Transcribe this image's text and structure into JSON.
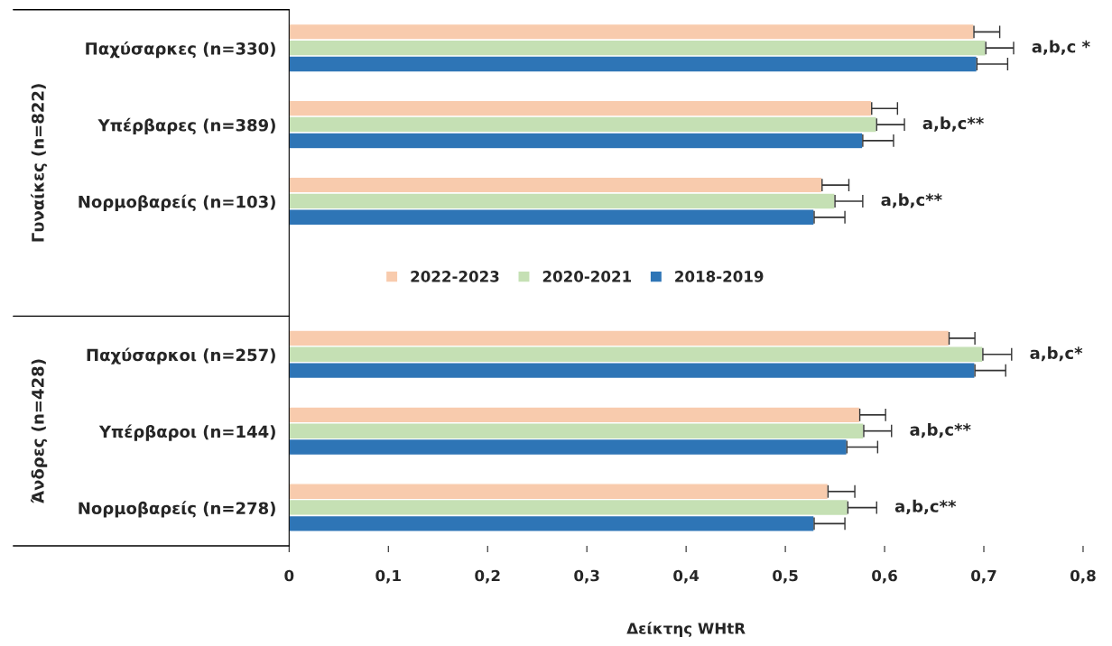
{
  "chart_data": {
    "type": "bar",
    "orientation": "horizontal",
    "xlabel": "Δείκτης WHtR",
    "categories": [
      "Παχύσαρκες (n=330)",
      "Υπέρβαρες (n=389)",
      "Νορμοβαρείς (n=103)",
      null,
      "Παχύσαρκοι (n=257)",
      "Υπέρβαροι (n=144)",
      "Νορμοβαρείς (n=278)"
    ],
    "series": [
      {
        "name": "2022-2023",
        "color": "#f8cbad",
        "values": [
          0.69,
          0.587,
          0.537,
          null,
          0.665,
          0.575,
          0.543
        ],
        "errors": [
          [
            0.69,
            0.716
          ],
          [
            0.587,
            0.613
          ],
          [
            0.537,
            0.564
          ],
          null,
          [
            0.665,
            0.691
          ],
          [
            0.575,
            0.601
          ],
          [
            0.543,
            0.57
          ]
        ]
      },
      {
        "name": "2020-2021",
        "color": "#c5e0b4",
        "values": [
          0.702,
          0.592,
          0.55,
          null,
          0.699,
          0.579,
          0.563
        ],
        "errors": [
          [
            0.702,
            0.73
          ],
          [
            0.592,
            0.62
          ],
          [
            0.55,
            0.578
          ],
          null,
          [
            0.699,
            0.728
          ],
          [
            0.579,
            0.607
          ],
          [
            0.563,
            0.592
          ]
        ]
      },
      {
        "name": "2018-2019",
        "color": "#2e75b6",
        "values": [
          0.693,
          0.578,
          0.529,
          null,
          0.691,
          0.562,
          0.529
        ],
        "errors": [
          [
            0.693,
            0.724
          ],
          [
            0.578,
            0.609
          ],
          [
            0.529,
            0.56
          ],
          null,
          [
            0.691,
            0.722
          ],
          [
            0.562,
            0.593
          ],
          [
            0.529,
            0.56
          ]
        ]
      }
    ],
    "xlim": [
      0,
      0.8
    ],
    "xticks": [
      0,
      {
        "value": 0.1,
        "label": "0,1"
      },
      {
        "value": 0.2,
        "label": "0,2"
      },
      {
        "value": 0.3,
        "label": "0,3"
      },
      {
        "value": 0.4,
        "label": "0,4"
      },
      {
        "value": 0.5,
        "label": "0,5"
      },
      {
        "value": 0.6,
        "label": "0,6"
      },
      {
        "value": 0.7,
        "label": "0,7"
      },
      {
        "value": 0.8,
        "label": "0,8"
      }
    ],
    "grid": false,
    "legend": "center",
    "annotations": [
      "a,b,c *",
      "a,b,c**",
      "a,b,c**",
      "a,b,c*",
      "a,b,c**",
      "a,b,c**",
      "Γυναίκες (n=822)",
      "Άνδρες (n=428)"
    ]
  }
}
